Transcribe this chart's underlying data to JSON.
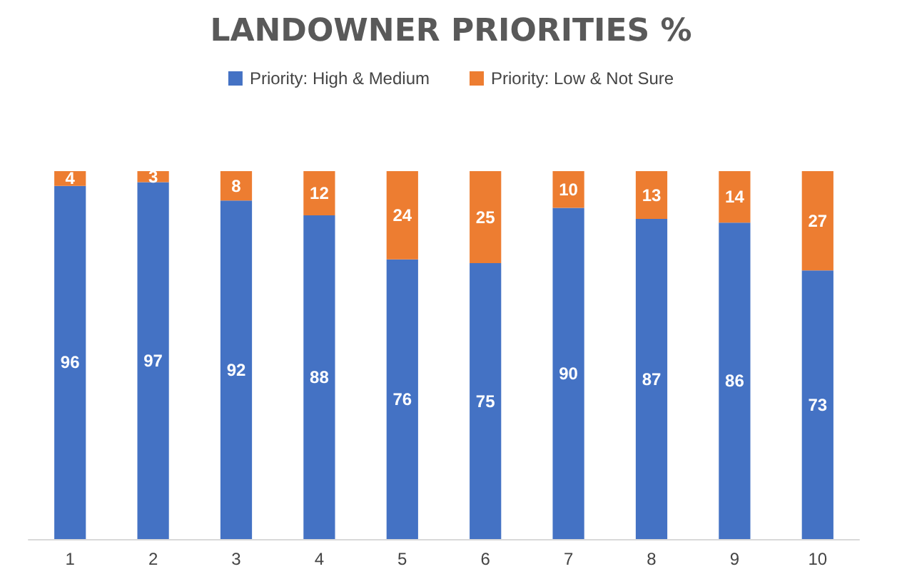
{
  "chart_data": {
    "type": "bar",
    "title": "LANDOWNER PRIORITIES %",
    "categories": [
      "1",
      "2",
      "3",
      "4",
      "5",
      "6",
      "7",
      "8",
      "9",
      "10"
    ],
    "stacked": true,
    "data_labels": true,
    "legend": "top",
    "series": [
      {
        "name": "Priority: High & Medium",
        "color": "#4472c4",
        "values": [
          96,
          97,
          92,
          88,
          76,
          75,
          90,
          87,
          86,
          73
        ]
      },
      {
        "name": "Priority: Low & Not Sure",
        "color": "#ed7d31",
        "values": [
          4,
          3,
          8,
          12,
          24,
          25,
          10,
          13,
          14,
          27
        ]
      }
    ]
  }
}
